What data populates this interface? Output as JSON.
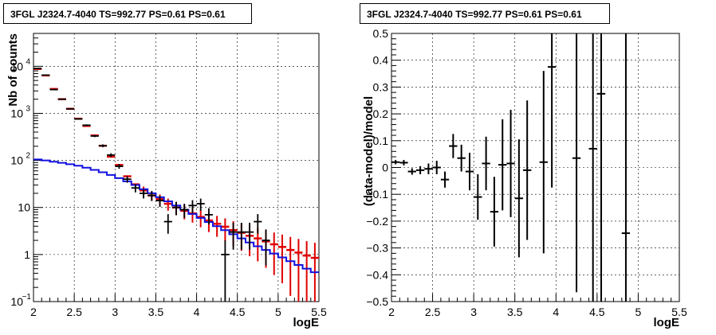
{
  "chart_data": [
    {
      "type": "step+errorbar",
      "title": "3FGL J2324.7-4040 TS=992.77 PS=0.61 PS=0.61",
      "xlabel": "logE",
      "ylabel": "Nb of counts",
      "xlim": [
        2,
        5.5
      ],
      "ylim": [
        0.1,
        50000
      ],
      "yscale": "log",
      "grid": true,
      "xticks": [
        "2",
        "2.5",
        "3",
        "3.5",
        "4",
        "4.5",
        "5",
        "5.5"
      ],
      "yticks": [
        "10^-1",
        "1",
        "10",
        "10^2",
        "10^3",
        "10^4"
      ],
      "colors": {
        "total": "#e00000",
        "data": "#000000",
        "source": "#1010e0"
      },
      "x": [
        2.05,
        2.15,
        2.25,
        2.35,
        2.45,
        2.55,
        2.65,
        2.75,
        2.85,
        2.95,
        3.05,
        3.15,
        3.25,
        3.35,
        3.45,
        3.55,
        3.65,
        3.75,
        3.85,
        3.95,
        4.05,
        4.15,
        4.25,
        4.35,
        4.45,
        4.55,
        4.65,
        4.75,
        4.85,
        4.95,
        5.05,
        5.15,
        5.25,
        5.35,
        5.45
      ],
      "series": [
        {
          "role": "total",
          "values": [
            8800,
            6400,
            3300,
            2000,
            1250,
            770,
            540,
            340,
            205,
            120,
            80,
            46,
            31,
            23,
            18,
            15,
            12,
            10,
            8.5,
            7.5,
            6.3,
            5.3,
            4.5,
            3.9,
            3.3,
            2.9,
            2.5,
            2.2,
            1.9,
            1.65,
            1.45,
            1.25,
            1.1,
            0.95,
            0.85
          ]
        },
        {
          "role": "data",
          "values": [
            9000,
            6500,
            3200,
            2000,
            1250,
            760,
            560,
            330,
            205,
            130,
            75,
            40,
            26,
            20,
            18,
            14,
            5,
            10,
            9,
            11,
            12,
            7,
            null,
            1,
            3,
            3,
            3,
            5,
            2,
            null,
            null,
            null,
            null,
            null,
            null
          ]
        },
        {
          "role": "source",
          "values": [
            105,
            100,
            94,
            89,
            83,
            77,
            70,
            63,
            56,
            49,
            42,
            36,
            30,
            24.5,
            20,
            16.5,
            13.5,
            11,
            9,
            7.3,
            6,
            4.9,
            4,
            3.3,
            2.7,
            2.2,
            1.8,
            1.5,
            1.25,
            1.05,
            0.87,
            0.72,
            0.6,
            0.5,
            0.42
          ]
        }
      ]
    },
    {
      "type": "errorbar",
      "title": "3FGL J2324.7-4040 TS=992.77 PS=0.61 PS=0.61",
      "xlabel": "logE",
      "ylabel": "(data-model)/model",
      "xlim": [
        2,
        5.5
      ],
      "ylim": [
        -0.5,
        0.5
      ],
      "grid": true,
      "xticks": [
        "2",
        "2.5",
        "3",
        "3.5",
        "4",
        "4.5",
        "5",
        "5.5"
      ],
      "yticks": [
        "−0.5",
        "−0.4",
        "−0.3",
        "−0.2",
        "−0.1",
        "0",
        "0.1",
        "0.2",
        "0.3",
        "0.4",
        "0.5"
      ],
      "points": [
        {
          "x": 2.05,
          "y": 0.02,
          "err": 0.008
        },
        {
          "x": 2.15,
          "y": 0.018,
          "err": 0.01
        },
        {
          "x": 2.25,
          "y": -0.015,
          "err": 0.012
        },
        {
          "x": 2.35,
          "y": -0.01,
          "err": 0.015
        },
        {
          "x": 2.45,
          "y": -0.005,
          "err": 0.02
        },
        {
          "x": 2.55,
          "y": 0.0,
          "err": 0.025
        },
        {
          "x": 2.65,
          "y": -0.045,
          "err": 0.03
        },
        {
          "x": 2.75,
          "y": 0.08,
          "err": 0.045
        },
        {
          "x": 2.85,
          "y": 0.035,
          "err": 0.05
        },
        {
          "x": 2.95,
          "y": -0.015,
          "err": 0.07
        },
        {
          "x": 3.05,
          "y": -0.11,
          "err": 0.085
        },
        {
          "x": 3.15,
          "y": 0.015,
          "err": 0.1
        },
        {
          "x": 3.25,
          "y": -0.165,
          "err": 0.13
        },
        {
          "x": 3.35,
          "y": 0.01,
          "err": 0.17
        },
        {
          "x": 3.45,
          "y": 0.015,
          "err": 0.2
        },
        {
          "x": 3.55,
          "y": -0.115,
          "err": 0.22
        },
        {
          "x": 3.65,
          "y": -0.01,
          "err": 0.26
        },
        {
          "x": 3.85,
          "y": 0.02,
          "err": 0.34
        },
        {
          "x": 3.95,
          "y": 0.375,
          "err": 0.45
        },
        {
          "x": 4.25,
          "y": 0.035,
          "err": 0.5
        },
        {
          "x": 4.45,
          "y": 0.07,
          "err": 0.6
        },
        {
          "x": 4.55,
          "y": 0.275,
          "err": 0.8
        },
        {
          "x": 4.85,
          "y": -0.245,
          "err": 0.8
        }
      ]
    }
  ]
}
